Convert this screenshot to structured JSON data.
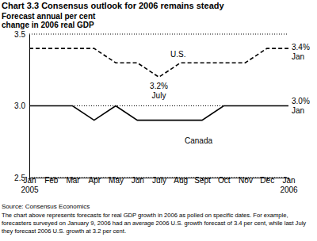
{
  "chart_data": {
    "type": "line",
    "title": "Chart 3.3 Consensus outlook for 2006 remains steady",
    "subtitle": "Forecast annual per cent change in 2006 real GDP",
    "categories": [
      "Jan 2005",
      "Feb",
      "Mar",
      "Apr",
      "May",
      "Jun",
      "July",
      "Aug",
      "Sept",
      "Oct",
      "Nov",
      "Dec",
      "Jan 2006"
    ],
    "series": [
      {
        "name": "U.S.",
        "color": "#000000",
        "line_style": "dashed",
        "values": [
          3.4,
          3.4,
          3.4,
          3.4,
          3.3,
          3.3,
          3.2,
          3.3,
          3.3,
          3.3,
          3.3,
          3.4,
          3.4
        ]
      },
      {
        "name": "Canada",
        "color": "#000000",
        "line_style": "solid",
        "values": [
          3.0,
          3.0,
          3.0,
          2.9,
          3.0,
          2.9,
          2.9,
          2.9,
          2.9,
          3.0,
          3.0,
          3.0,
          3.0
        ]
      }
    ],
    "ylim": [
      2.5,
      3.5
    ],
    "yticks": [
      2.5,
      {
        "value": 3.0,
        "label": "3.0"
      },
      3.5
    ],
    "grid": true,
    "annotations": [
      [
        "3.4%",
        "Jan"
      ],
      [
        "3.2%",
        "July"
      ],
      [
        "3.0%",
        "Jan"
      ]
    ],
    "source": "Source: Consensus Economics",
    "note": "The chart above represents forecasts for real GDP growth in 2006 as polled on specific dates. For example, forecasters surveyed on January 9, 2006 had an average 2006 U.S. growth forecast of 3.4 per cent, while last July they forecast 2006 U.S. growth at 3.2 per cent."
  }
}
